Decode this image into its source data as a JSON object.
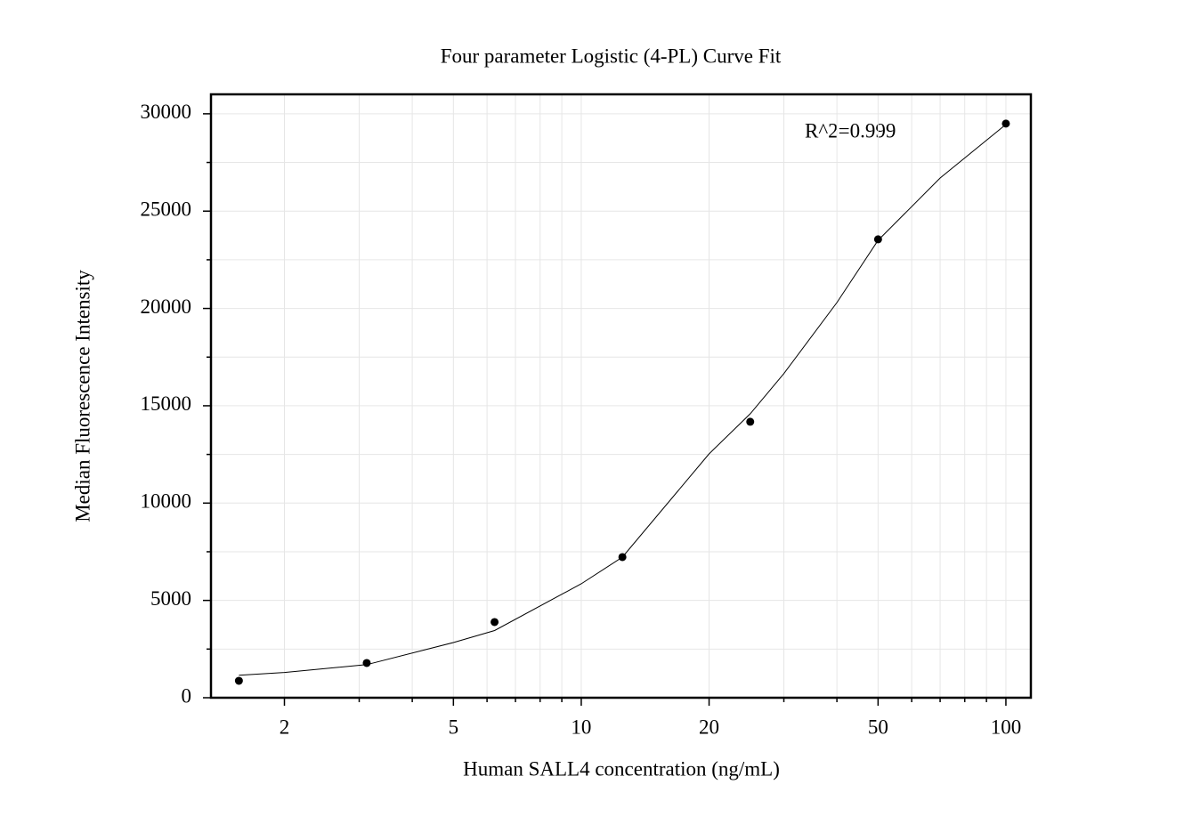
{
  "chart_data": {
    "type": "scatter",
    "title": "Four parameter Logistic (4-PL) Curve Fit",
    "xlabel": "Human SALL4 concentration (ng/mL)",
    "ylabel": "Median Fluorescence Intensity",
    "annotation": "R^2=0.999",
    "xscale": "log",
    "xlim": [
      1.343,
      114.5
    ],
    "ylim": [
      0,
      31000
    ],
    "xticks": [
      2,
      5,
      10,
      20,
      50,
      100
    ],
    "xminorticks": [
      3,
      4,
      6,
      7,
      8,
      9,
      30,
      40,
      60,
      70,
      80,
      90
    ],
    "yticks": [
      0,
      5000,
      10000,
      15000,
      20000,
      25000,
      30000
    ],
    "yminorticks": [
      2500,
      7500,
      12500,
      17500,
      22500,
      27500
    ],
    "grid": true,
    "series": [
      {
        "kind": "points",
        "color": "#000000",
        "x": [
          1.5625,
          3.125,
          6.25,
          12.5,
          25,
          50,
          100
        ],
        "values": [
          869,
          1784,
          3887,
          7226,
          14177,
          23552,
          29497
        ]
      },
      {
        "kind": "fit",
        "color": "#000000",
        "x": [
          1.5625,
          2,
          3.125,
          5,
          6.25,
          10,
          12.5,
          20,
          25,
          30,
          40,
          50,
          70,
          100
        ],
        "values": [
          1150,
          1300,
          1700,
          2835,
          3450,
          5853,
          7226,
          12530,
          14590,
          16650,
          20300,
          23500,
          26700,
          29450
        ]
      }
    ]
  }
}
